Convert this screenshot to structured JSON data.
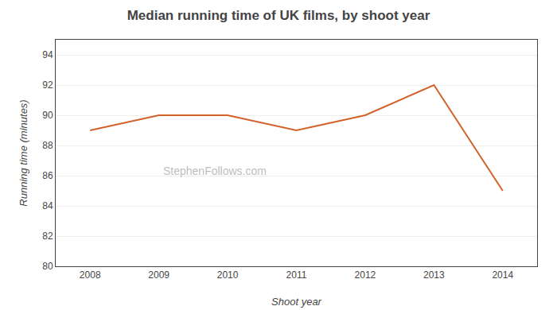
{
  "chart_data": {
    "type": "line",
    "title": "Median running time of UK films, by shoot year",
    "xlabel": "Shoot year",
    "ylabel": "Running time (minutes)",
    "x": [
      2008,
      2009,
      2010,
      2011,
      2012,
      2013,
      2014
    ],
    "values": [
      89.0,
      90.0,
      90.0,
      89.0,
      90.0,
      92.0,
      85.0
    ],
    "color": "#d2622a",
    "xlim": [
      2007.5,
      2014.5
    ],
    "xticks": [
      2008,
      2009,
      2010,
      2011,
      2012,
      2013,
      2014
    ],
    "ylim": [
      80,
      95
    ],
    "yticks": [
      80,
      82,
      84,
      86,
      88,
      90,
      92,
      94
    ],
    "grid": "y",
    "annotations": [
      "StephenFollows.com"
    ]
  }
}
